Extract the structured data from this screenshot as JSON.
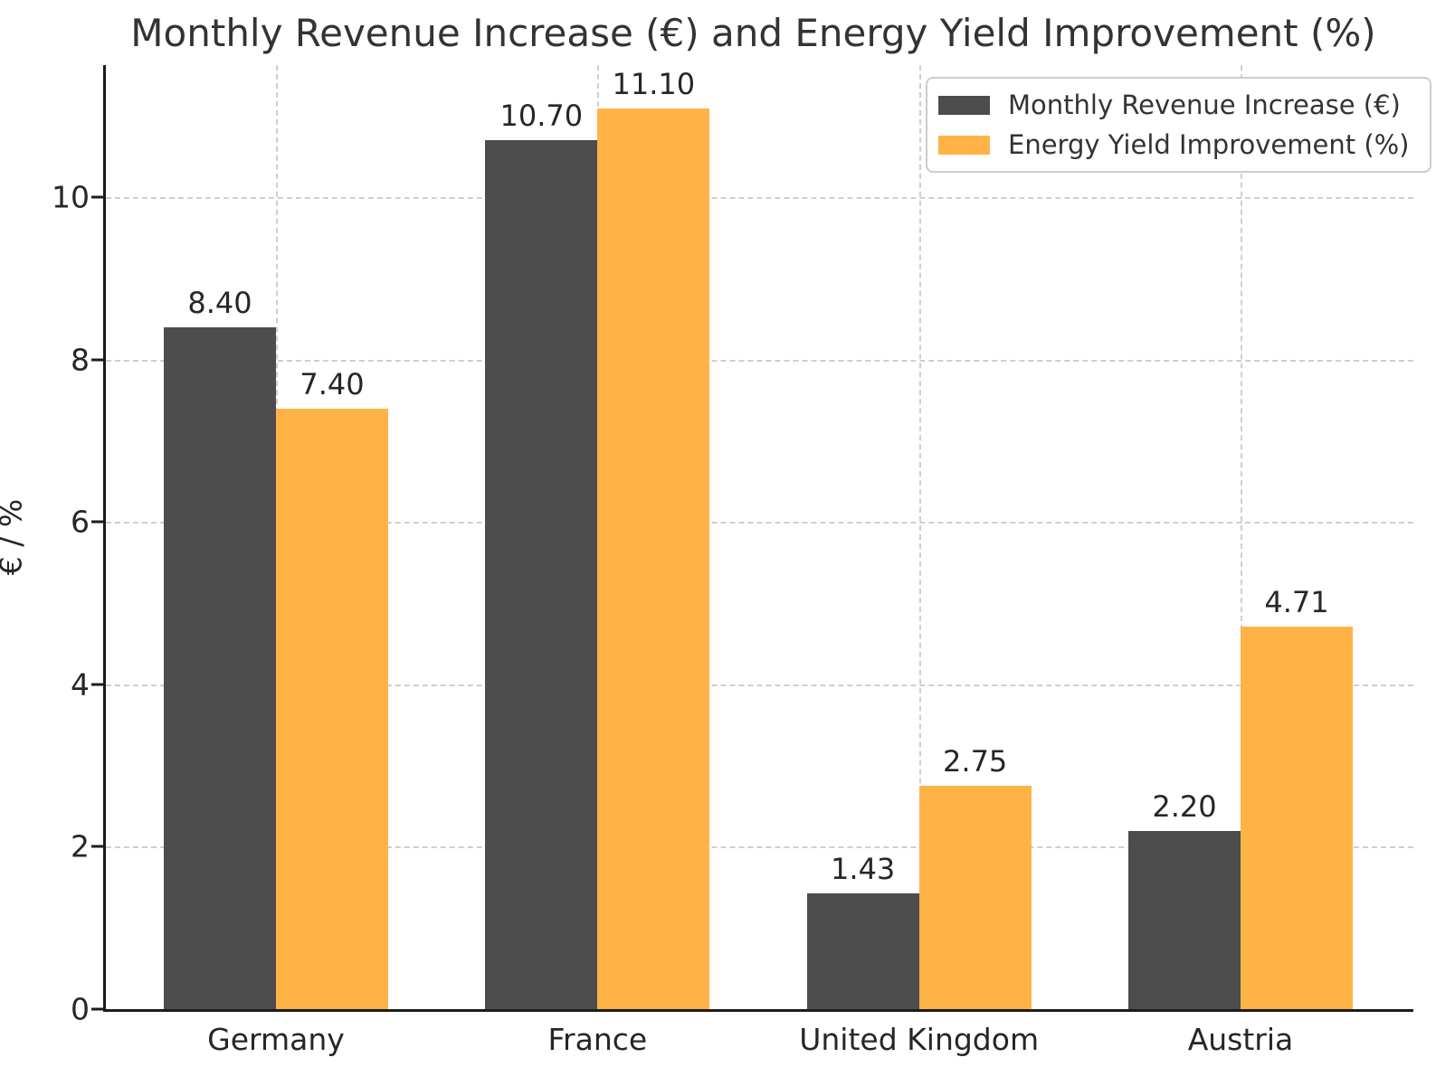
{
  "title": "Monthly Revenue Increase (€) and Energy Yield Improvement (%)",
  "chart_data": {
    "type": "bar",
    "title": "Monthly Revenue Increase (€) and Energy Yield Improvement (%)",
    "xlabel": "",
    "ylabel": "€ / %",
    "categories": [
      "Germany",
      "France",
      "United Kingdom",
      "Austria"
    ],
    "series": [
      {
        "name": "Monthly Revenue Increase (€)",
        "color": "#4d4d4d",
        "values": [
          8.4,
          10.7,
          1.43,
          2.2
        ],
        "value_labels": [
          "8.40",
          "10.70",
          "1.43",
          "2.20"
        ]
      },
      {
        "name": "Energy Yield Improvement (%)",
        "color": "#ffb347",
        "values": [
          7.4,
          11.1,
          2.75,
          4.71
        ],
        "value_labels": [
          "7.40",
          "11.10",
          "2.75",
          "4.71"
        ]
      }
    ],
    "yticks": [
      0,
      2,
      4,
      6,
      8,
      10
    ],
    "ylim": [
      0,
      11.63
    ],
    "grid": "dashed, horizontal and vertical",
    "legend_position": "upper right"
  }
}
